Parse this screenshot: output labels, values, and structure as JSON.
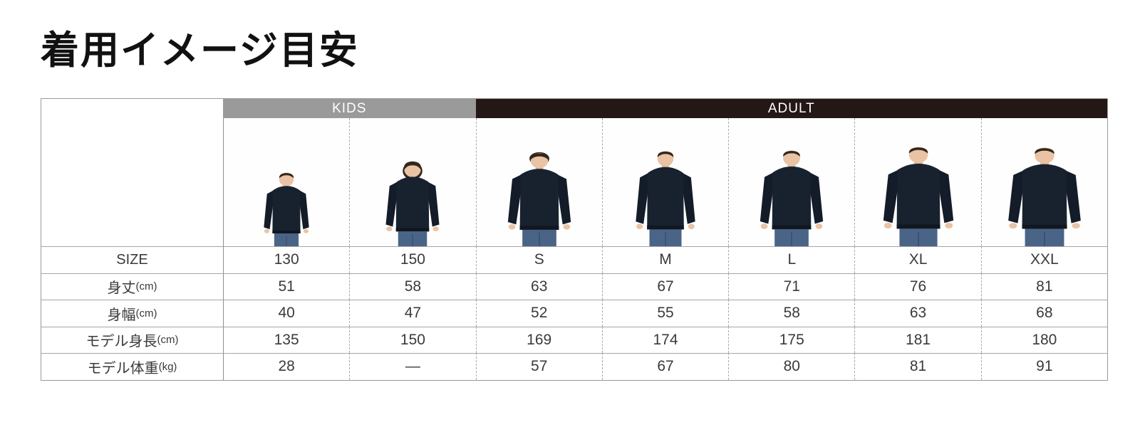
{
  "title": "着用イメージ目安",
  "table": {
    "groups": [
      {
        "label": "KIDS",
        "span": 2,
        "bg": "#9a9a9a"
      },
      {
        "label": "ADULT",
        "span": 5,
        "bg": "#231815"
      }
    ],
    "columns": [
      {
        "size": "130",
        "group": "KIDS",
        "model": "child"
      },
      {
        "size": "150",
        "group": "KIDS",
        "model": "child"
      },
      {
        "size": "S",
        "group": "ADULT",
        "model": "adult-male"
      },
      {
        "size": "M",
        "group": "ADULT",
        "model": "adult-male"
      },
      {
        "size": "L",
        "group": "ADULT",
        "model": "adult-male"
      },
      {
        "size": "XL",
        "group": "ADULT",
        "model": "adult-male"
      },
      {
        "size": "XXL",
        "group": "ADULT",
        "model": "adult-male"
      }
    ],
    "rows": [
      {
        "key": "size",
        "label": "SIZE",
        "unit": "",
        "values": [
          "130",
          "150",
          "S",
          "M",
          "L",
          "XL",
          "XXL"
        ]
      },
      {
        "key": "body-length",
        "label": "身丈",
        "unit": "(cm)",
        "values": [
          "51",
          "58",
          "63",
          "67",
          "71",
          "76",
          "81"
        ]
      },
      {
        "key": "body-width",
        "label": "身幅",
        "unit": "(cm)",
        "values": [
          "40",
          "47",
          "52",
          "55",
          "58",
          "63",
          "68"
        ]
      },
      {
        "key": "model-height",
        "label": "モデル身長",
        "unit": "(cm)",
        "values": [
          "135",
          "150",
          "169",
          "174",
          "175",
          "181",
          "180"
        ]
      },
      {
        "key": "model-weight",
        "label": "モデル体重",
        "unit": "(kg)",
        "values": [
          "28",
          "—",
          "57",
          "67",
          "80",
          "81",
          "91"
        ]
      }
    ]
  },
  "colors": {
    "kids_header_bg": "#9a9a9a",
    "adult_header_bg": "#231815",
    "header_text": "#ffffff",
    "sweatshirt": "#18222f",
    "jeans": "#4a6488"
  }
}
